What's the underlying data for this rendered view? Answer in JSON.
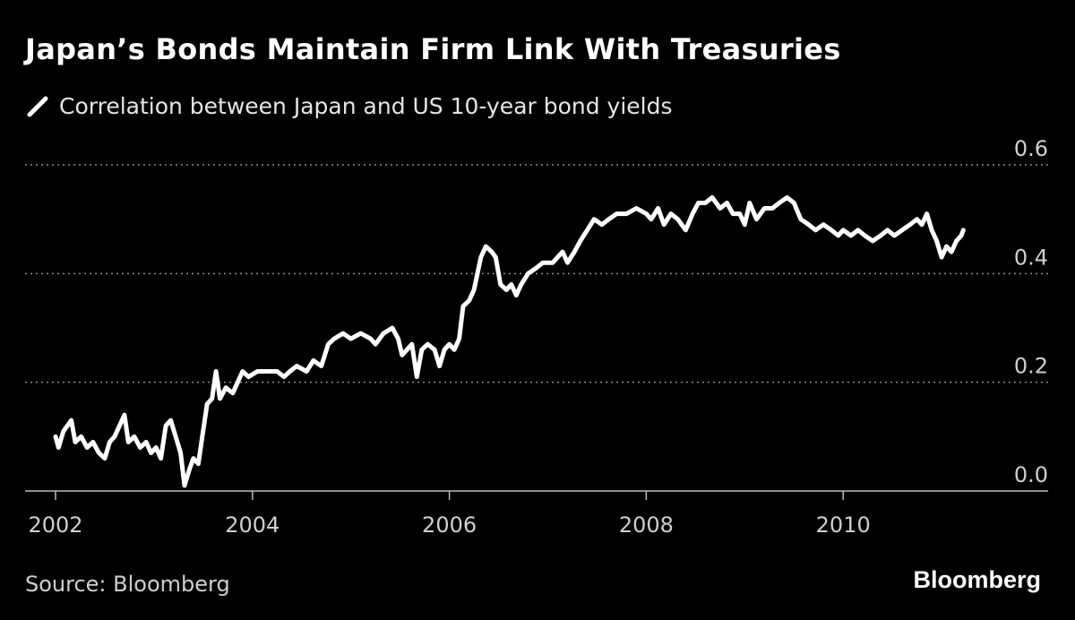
{
  "chart_data": {
    "type": "line",
    "title": "Japan’s Bonds Maintain Firm Link With Treasuries",
    "xlabel": "",
    "ylabel": "",
    "xlim": [
      2002,
      2012.0
    ],
    "ylim": [
      0,
      0.6
    ],
    "x_ticks": [
      {
        "value": 2002,
        "label": "2002"
      },
      {
        "value": 2004,
        "label": "2004"
      },
      {
        "value": 2006,
        "label": "2006"
      },
      {
        "value": 2008,
        "label": "2008"
      },
      {
        "value": 2010,
        "label": "2010"
      }
    ],
    "y_ticks": [
      {
        "value": 0.0,
        "label": "0.0"
      },
      {
        "value": 0.2,
        "label": "0.2"
      },
      {
        "value": 0.4,
        "label": "0.4"
      },
      {
        "value": 0.6,
        "label": "0.6"
      }
    ],
    "grid": "horizontal dotted",
    "series": [
      {
        "name": "Correlation between Japan and US 10-year bond yields",
        "color": "#ffffff",
        "points": [
          [
            2002.0,
            0.1
          ],
          [
            2002.03,
            0.08
          ],
          [
            2002.08,
            0.11
          ],
          [
            2002.12,
            0.12
          ],
          [
            2002.16,
            0.13
          ],
          [
            2002.2,
            0.09
          ],
          [
            2002.26,
            0.1
          ],
          [
            2002.32,
            0.08
          ],
          [
            2002.38,
            0.09
          ],
          [
            2002.44,
            0.07
          ],
          [
            2002.5,
            0.06
          ],
          [
            2002.55,
            0.09
          ],
          [
            2002.6,
            0.1
          ],
          [
            2002.65,
            0.12
          ],
          [
            2002.7,
            0.14
          ],
          [
            2002.74,
            0.09
          ],
          [
            2002.8,
            0.1
          ],
          [
            2002.86,
            0.08
          ],
          [
            2002.92,
            0.09
          ],
          [
            2002.97,
            0.07
          ],
          [
            2003.02,
            0.08
          ],
          [
            2003.07,
            0.06
          ],
          [
            2003.12,
            0.12
          ],
          [
            2003.17,
            0.13
          ],
          [
            2003.22,
            0.1
          ],
          [
            2003.27,
            0.07
          ],
          [
            2003.31,
            0.01
          ],
          [
            2003.36,
            0.04
          ],
          [
            2003.4,
            0.06
          ],
          [
            2003.45,
            0.05
          ],
          [
            2003.49,
            0.1
          ],
          [
            2003.54,
            0.16
          ],
          [
            2003.59,
            0.17
          ],
          [
            2003.63,
            0.22
          ],
          [
            2003.67,
            0.17
          ],
          [
            2003.73,
            0.19
          ],
          [
            2003.8,
            0.18
          ],
          [
            2003.85,
            0.2
          ],
          [
            2003.9,
            0.22
          ],
          [
            2003.96,
            0.21
          ],
          [
            2004.05,
            0.22
          ],
          [
            2004.15,
            0.22
          ],
          [
            2004.25,
            0.22
          ],
          [
            2004.32,
            0.21
          ],
          [
            2004.38,
            0.22
          ],
          [
            2004.45,
            0.23
          ],
          [
            2004.55,
            0.22
          ],
          [
            2004.62,
            0.24
          ],
          [
            2004.7,
            0.23
          ],
          [
            2004.77,
            0.27
          ],
          [
            2004.83,
            0.28
          ],
          [
            2004.92,
            0.29
          ],
          [
            2005.0,
            0.28
          ],
          [
            2005.1,
            0.29
          ],
          [
            2005.2,
            0.28
          ],
          [
            2005.25,
            0.27
          ],
          [
            2005.33,
            0.29
          ],
          [
            2005.42,
            0.3
          ],
          [
            2005.48,
            0.28
          ],
          [
            2005.52,
            0.25
          ],
          [
            2005.57,
            0.26
          ],
          [
            2005.62,
            0.27
          ],
          [
            2005.67,
            0.21
          ],
          [
            2005.72,
            0.26
          ],
          [
            2005.78,
            0.27
          ],
          [
            2005.85,
            0.26
          ],
          [
            2005.9,
            0.23
          ],
          [
            2005.95,
            0.26
          ],
          [
            2006.0,
            0.27
          ],
          [
            2006.05,
            0.26
          ],
          [
            2006.1,
            0.28
          ],
          [
            2006.14,
            0.34
          ],
          [
            2006.2,
            0.35
          ],
          [
            2006.25,
            0.37
          ],
          [
            2006.32,
            0.43
          ],
          [
            2006.37,
            0.45
          ],
          [
            2006.43,
            0.44
          ],
          [
            2006.47,
            0.43
          ],
          [
            2006.52,
            0.38
          ],
          [
            2006.58,
            0.37
          ],
          [
            2006.63,
            0.38
          ],
          [
            2006.68,
            0.36
          ],
          [
            2006.73,
            0.38
          ],
          [
            2006.8,
            0.4
          ],
          [
            2006.88,
            0.41
          ],
          [
            2006.95,
            0.42
          ],
          [
            2007.05,
            0.42
          ],
          [
            2007.1,
            0.43
          ],
          [
            2007.15,
            0.44
          ],
          [
            2007.2,
            0.42
          ],
          [
            2007.27,
            0.44
          ],
          [
            2007.33,
            0.46
          ],
          [
            2007.4,
            0.48
          ],
          [
            2007.47,
            0.5
          ],
          [
            2007.55,
            0.49
          ],
          [
            2007.62,
            0.5
          ],
          [
            2007.7,
            0.51
          ],
          [
            2007.8,
            0.51
          ],
          [
            2007.9,
            0.52
          ],
          [
            2008.0,
            0.51
          ],
          [
            2008.05,
            0.5
          ],
          [
            2008.12,
            0.52
          ],
          [
            2008.18,
            0.49
          ],
          [
            2008.25,
            0.51
          ],
          [
            2008.32,
            0.5
          ],
          [
            2008.4,
            0.48
          ],
          [
            2008.47,
            0.51
          ],
          [
            2008.53,
            0.53
          ],
          [
            2008.6,
            0.53
          ],
          [
            2008.67,
            0.54
          ],
          [
            2008.75,
            0.52
          ],
          [
            2008.82,
            0.53
          ],
          [
            2008.88,
            0.51
          ],
          [
            2008.95,
            0.51
          ],
          [
            2009.0,
            0.49
          ],
          [
            2009.05,
            0.53
          ],
          [
            2009.12,
            0.5
          ],
          [
            2009.2,
            0.52
          ],
          [
            2009.28,
            0.52
          ],
          [
            2009.35,
            0.53
          ],
          [
            2009.43,
            0.54
          ],
          [
            2009.5,
            0.53
          ],
          [
            2009.57,
            0.5
          ],
          [
            2009.65,
            0.49
          ],
          [
            2009.72,
            0.48
          ],
          [
            2009.8,
            0.49
          ],
          [
            2009.88,
            0.48
          ],
          [
            2009.95,
            0.47
          ],
          [
            2010.0,
            0.48
          ],
          [
            2010.08,
            0.47
          ],
          [
            2010.15,
            0.48
          ],
          [
            2010.22,
            0.47
          ],
          [
            2010.3,
            0.46
          ],
          [
            2010.38,
            0.47
          ],
          [
            2010.45,
            0.48
          ],
          [
            2010.52,
            0.47
          ],
          [
            2010.6,
            0.48
          ],
          [
            2010.68,
            0.49
          ],
          [
            2010.75,
            0.5
          ],
          [
            2010.8,
            0.49
          ],
          [
            2010.85,
            0.51
          ],
          [
            2010.9,
            0.48
          ],
          [
            2010.95,
            0.46
          ],
          [
            2011.0,
            0.43
          ],
          [
            2011.05,
            0.45
          ],
          [
            2011.1,
            0.44
          ],
          [
            2011.15,
            0.46
          ],
          [
            2011.2,
            0.47
          ],
          [
            2011.22,
            0.48
          ]
        ]
      }
    ]
  },
  "header": {
    "legend_label": "Correlation between Japan and US 10-year bond yields"
  },
  "footer": {
    "source": "Source: Bloomberg",
    "brand": "Bloomberg"
  }
}
